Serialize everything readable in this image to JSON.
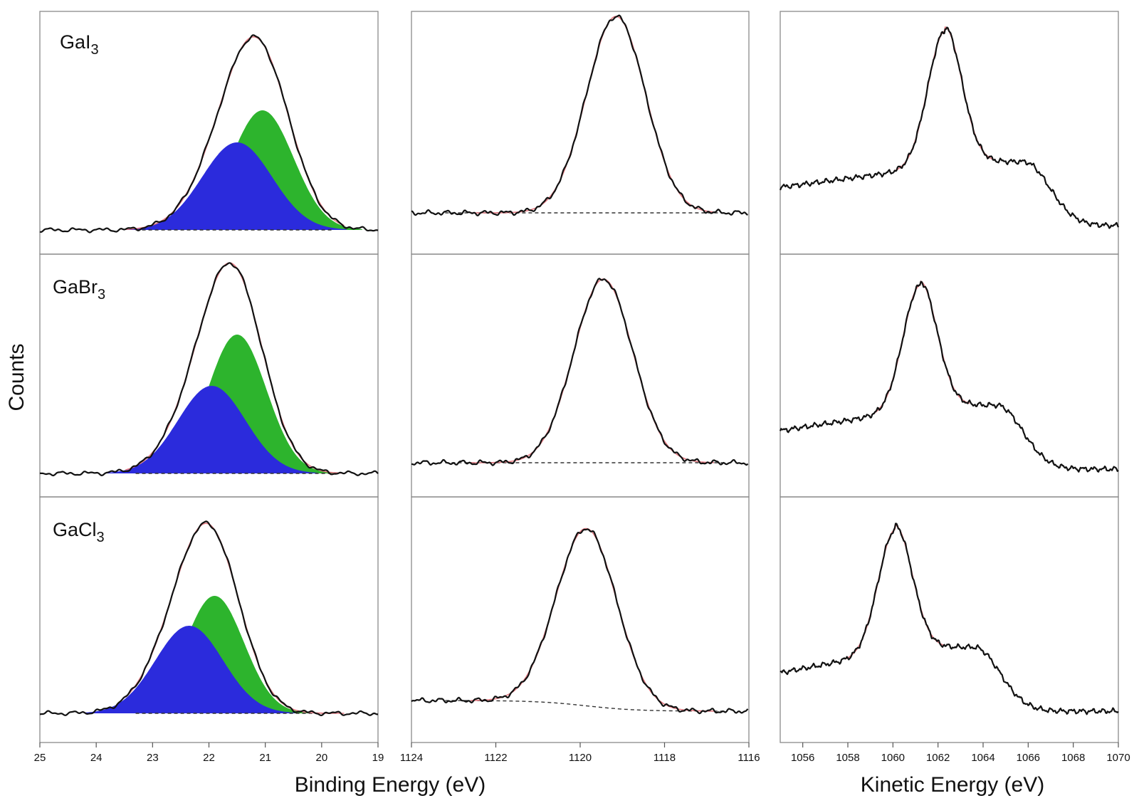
{
  "figure": {
    "ylabel": "Counts",
    "xlabel_binding": "Binding Energy (eV)",
    "xlabel_kinetic": "Kinetic Energy (eV)"
  },
  "samples": [
    {
      "prefix": "GaI",
      "sub": "3"
    },
    {
      "prefix": "GaBr",
      "sub": "3"
    },
    {
      "prefix": "GaCl",
      "sub": "3"
    }
  ],
  "colors": {
    "measured": "#111111",
    "fit": "#e47a82",
    "component_1": "#2db42d",
    "component_2": "#2b2bdc",
    "background": "#333333"
  },
  "chart_data": [
    {
      "type": "line",
      "panel": "valence region (columns 1)",
      "xlabel": "",
      "ylabel": "Counts",
      "xlim": [
        25,
        19
      ],
      "x_reversed": true,
      "xticks": [
        25,
        24,
        23,
        22,
        21,
        20,
        19
      ],
      "rows": [
        {
          "sample": "GaI3",
          "baseline": 0.05,
          "components": [
            {
              "name": "",
              "color": "green",
              "center": 21.05,
              "height": 0.56,
              "width": 0.55
            },
            {
              "name": "",
              "color": "blue",
              "center": 21.5,
              "height": 0.41,
              "width": 0.62
            }
          ]
        },
        {
          "sample": "GaBr3",
          "baseline": 0.05,
          "components": [
            {
              "name": "",
              "color": "green",
              "center": 21.5,
              "height": 0.65,
              "width": 0.52
            },
            {
              "name": "",
              "color": "blue",
              "center": 21.95,
              "height": 0.41,
              "width": 0.6
            }
          ]
        },
        {
          "sample": "GaCl3",
          "baseline": 0.06,
          "components": [
            {
              "name": "",
              "color": "green",
              "center": 21.9,
              "height": 0.55,
              "width": 0.52
            },
            {
              "name": "",
              "color": "blue",
              "center": 22.35,
              "height": 0.41,
              "width": 0.6
            }
          ]
        }
      ]
    },
    {
      "type": "line",
      "panel": "core level (column 2)",
      "xlabel": "Binding Energy (eV)",
      "xlim": [
        1124,
        1116
      ],
      "x_reversed": true,
      "xticks": [
        1124,
        1122,
        1120,
        1118,
        1116
      ],
      "rows": [
        {
          "sample": "GaI3",
          "peak_center": 1119.15,
          "peak_height": 0.92,
          "peak_width": 0.7,
          "baseline": 0.13
        },
        {
          "sample": "GaBr3",
          "peak_center": 1119.45,
          "peak_height": 0.86,
          "peak_width": 0.7,
          "baseline": 0.1
        },
        {
          "sample": "GaCl3",
          "peak_center": 1119.85,
          "peak_height": 0.83,
          "peak_width": 0.72,
          "baseline": 0.12
        }
      ]
    },
    {
      "type": "line",
      "panel": "Auger (column 3)",
      "xlabel": "Kinetic Energy (eV)",
      "xlim": [
        1055,
        1070
      ],
      "xticks": [
        1056,
        1058,
        1060,
        1062,
        1064,
        1066,
        1068,
        1070
      ],
      "rows": [
        {
          "sample": "GaI3",
          "peak_center": 1062.3,
          "peak_height": 0.98,
          "shoulder_center": 1065.8
        },
        {
          "sample": "GaBr3",
          "peak_center": 1061.2,
          "peak_height": 0.93,
          "shoulder_center": 1064.6
        },
        {
          "sample": "GaCl3",
          "peak_center": 1060.1,
          "peak_height": 0.92,
          "shoulder_center": 1063.6
        }
      ]
    }
  ]
}
